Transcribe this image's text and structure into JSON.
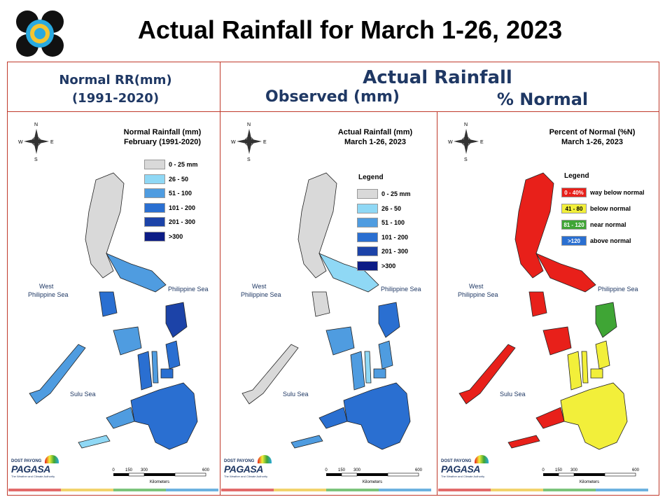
{
  "title": "Actual Rainfall for March 1-26, 2023",
  "headers": {
    "normal": "Normal RR(mm)",
    "normal_period": "(1991-2020)",
    "actual": "Actual Rainfall",
    "observed": "Observed (mm)",
    "percent": "% Normal"
  },
  "panels": [
    {
      "title_line1": "Normal Rainfall (mm)",
      "title_line2": "February (1991-2020)",
      "legend_title": "",
      "legend": [
        {
          "label": "0 - 25 mm",
          "color": "#d9d9d9"
        },
        {
          "label": "26 - 50",
          "color": "#8fd8f5"
        },
        {
          "label": "51 - 100",
          "color": "#4f9ce0"
        },
        {
          "label": "101 - 200",
          "color": "#2a6fd1"
        },
        {
          "label": "201 - 300",
          "color": "#1c43a8"
        },
        {
          "label": ">300",
          "color": "#0c1c86"
        }
      ]
    },
    {
      "title_line1": "Actual Rainfall (mm)",
      "title_line2": "March 1-26, 2023",
      "legend_title": "Legend",
      "legend": [
        {
          "label": "0 - 25 mm",
          "color": "#d9d9d9"
        },
        {
          "label": "26 - 50",
          "color": "#8fd8f5"
        },
        {
          "label": "51 - 100",
          "color": "#4f9ce0"
        },
        {
          "label": "101 - 200",
          "color": "#2a6fd1"
        },
        {
          "label": "201 - 300",
          "color": "#1c43a8"
        },
        {
          "label": ">300",
          "color": "#0c1c86"
        }
      ]
    },
    {
      "title_line1": "Percent of Normal (%N)",
      "title_line2": "March 1-26, 2023",
      "legend_title": "Legend",
      "legend": [
        {
          "swatch": "0 - 40%",
          "label": "way below normal",
          "color": "#e8201a"
        },
        {
          "swatch": "41 - 80",
          "label": "below normal",
          "color": "#f2ef3a"
        },
        {
          "swatch": "81 - 120",
          "label": "near normal",
          "color": "#3fa535"
        },
        {
          "swatch": ">120",
          "label": "above normal",
          "color": "#2a6fd1"
        }
      ]
    }
  ],
  "map_labels": {
    "west_line1": "West",
    "west_line2": "Philippine Sea",
    "east": "Philippine Sea",
    "sulu": "Sulu Sea",
    "compass_n": "N",
    "compass_s": "S",
    "compass_e": "E",
    "compass_w": "W"
  },
  "scale": {
    "ticks": [
      "0",
      "150",
      "300",
      "600"
    ],
    "unit": "Kilometers"
  },
  "footer_logo": {
    "top": "DOST",
    "mid": "PAGASA",
    "brand": "PAYONG",
    "tagline": "The Weather and Climate Authority"
  },
  "colors": {
    "frame": "#c0392b",
    "header_text": "#1f3864"
  }
}
